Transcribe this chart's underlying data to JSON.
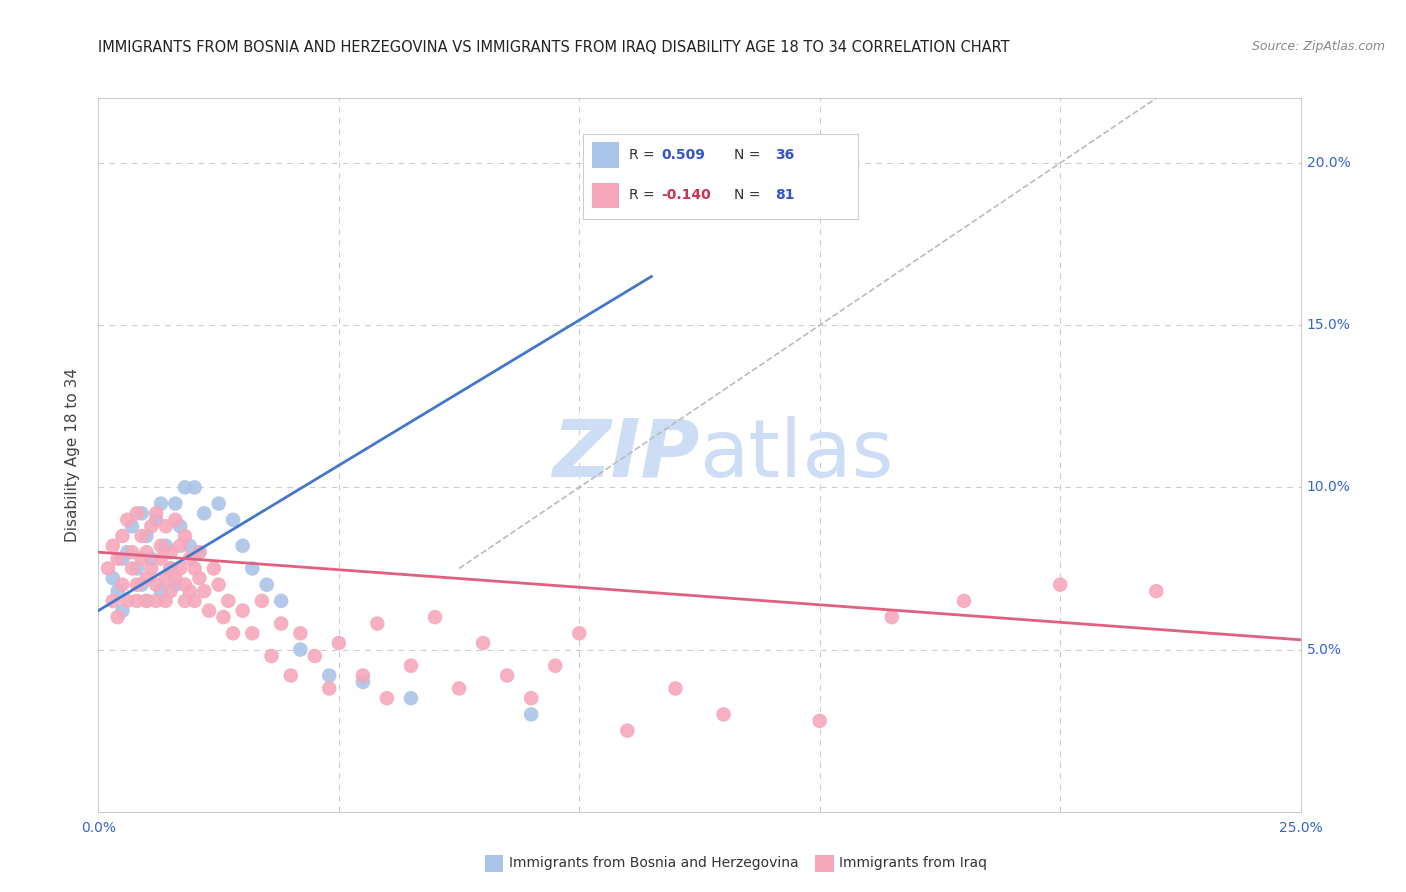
{
  "title": "IMMIGRANTS FROM BOSNIA AND HERZEGOVINA VS IMMIGRANTS FROM IRAQ DISABILITY AGE 18 TO 34 CORRELATION CHART",
  "source": "Source: ZipAtlas.com",
  "ylabel": "Disability Age 18 to 34",
  "xlim": [
    0.0,
    0.25
  ],
  "ylim": [
    0.0,
    0.22
  ],
  "blue_color": "#aac4e8",
  "pink_color": "#f5a8bc",
  "blue_line_color": "#4477cc",
  "pink_line_color": "#e06080",
  "diag_line_color": "#bbbbbb",
  "legend_R_color": "#3355cc",
  "legend_neg_R_color": "#cc3355",
  "watermark_zip": "ZIP",
  "watermark_atlas": "atlas",
  "watermark_color": "#ccddf5",
  "blue_scatter_x": [
    0.003,
    0.004,
    0.005,
    0.005,
    0.006,
    0.007,
    0.008,
    0.009,
    0.009,
    0.01,
    0.01,
    0.011,
    0.012,
    0.013,
    0.013,
    0.014,
    0.015,
    0.016,
    0.016,
    0.017,
    0.018,
    0.019,
    0.02,
    0.021,
    0.022,
    0.025,
    0.028,
    0.03,
    0.032,
    0.035,
    0.038,
    0.042,
    0.048,
    0.055,
    0.065,
    0.09
  ],
  "blue_scatter_y": [
    0.072,
    0.068,
    0.078,
    0.062,
    0.08,
    0.088,
    0.075,
    0.092,
    0.07,
    0.085,
    0.065,
    0.078,
    0.09,
    0.095,
    0.068,
    0.082,
    0.075,
    0.095,
    0.07,
    0.088,
    0.1,
    0.082,
    0.1,
    0.08,
    0.092,
    0.095,
    0.09,
    0.082,
    0.075,
    0.07,
    0.065,
    0.05,
    0.042,
    0.04,
    0.035,
    0.03
  ],
  "pink_scatter_x": [
    0.002,
    0.003,
    0.003,
    0.004,
    0.004,
    0.005,
    0.005,
    0.006,
    0.006,
    0.007,
    0.007,
    0.008,
    0.008,
    0.008,
    0.009,
    0.009,
    0.01,
    0.01,
    0.01,
    0.011,
    0.011,
    0.012,
    0.012,
    0.012,
    0.013,
    0.013,
    0.014,
    0.014,
    0.014,
    0.015,
    0.015,
    0.015,
    0.016,
    0.016,
    0.017,
    0.017,
    0.018,
    0.018,
    0.018,
    0.019,
    0.019,
    0.02,
    0.02,
    0.021,
    0.021,
    0.022,
    0.023,
    0.024,
    0.025,
    0.026,
    0.027,
    0.028,
    0.03,
    0.032,
    0.034,
    0.036,
    0.038,
    0.04,
    0.042,
    0.045,
    0.048,
    0.05,
    0.055,
    0.058,
    0.06,
    0.065,
    0.07,
    0.075,
    0.08,
    0.085,
    0.09,
    0.095,
    0.1,
    0.11,
    0.12,
    0.13,
    0.15,
    0.165,
    0.18,
    0.2,
    0.22
  ],
  "pink_scatter_y": [
    0.075,
    0.082,
    0.065,
    0.078,
    0.06,
    0.085,
    0.07,
    0.09,
    0.065,
    0.08,
    0.075,
    0.092,
    0.07,
    0.065,
    0.085,
    0.078,
    0.08,
    0.072,
    0.065,
    0.088,
    0.075,
    0.092,
    0.07,
    0.065,
    0.082,
    0.078,
    0.072,
    0.088,
    0.065,
    0.08,
    0.075,
    0.068,
    0.09,
    0.072,
    0.082,
    0.075,
    0.07,
    0.085,
    0.065,
    0.078,
    0.068,
    0.075,
    0.065,
    0.08,
    0.072,
    0.068,
    0.062,
    0.075,
    0.07,
    0.06,
    0.065,
    0.055,
    0.062,
    0.055,
    0.065,
    0.048,
    0.058,
    0.042,
    0.055,
    0.048,
    0.038,
    0.052,
    0.042,
    0.058,
    0.035,
    0.045,
    0.06,
    0.038,
    0.052,
    0.042,
    0.035,
    0.045,
    0.055,
    0.025,
    0.038,
    0.03,
    0.028,
    0.06,
    0.065,
    0.07,
    0.068
  ],
  "blue_line_x": [
    0.0,
    0.115
  ],
  "blue_line_y": [
    0.062,
    0.165
  ],
  "pink_line_x": [
    0.0,
    0.25
  ],
  "pink_line_y": [
    0.08,
    0.053
  ],
  "diag_line_x": [
    0.075,
    0.22
  ],
  "diag_line_y": [
    0.075,
    0.22
  ]
}
